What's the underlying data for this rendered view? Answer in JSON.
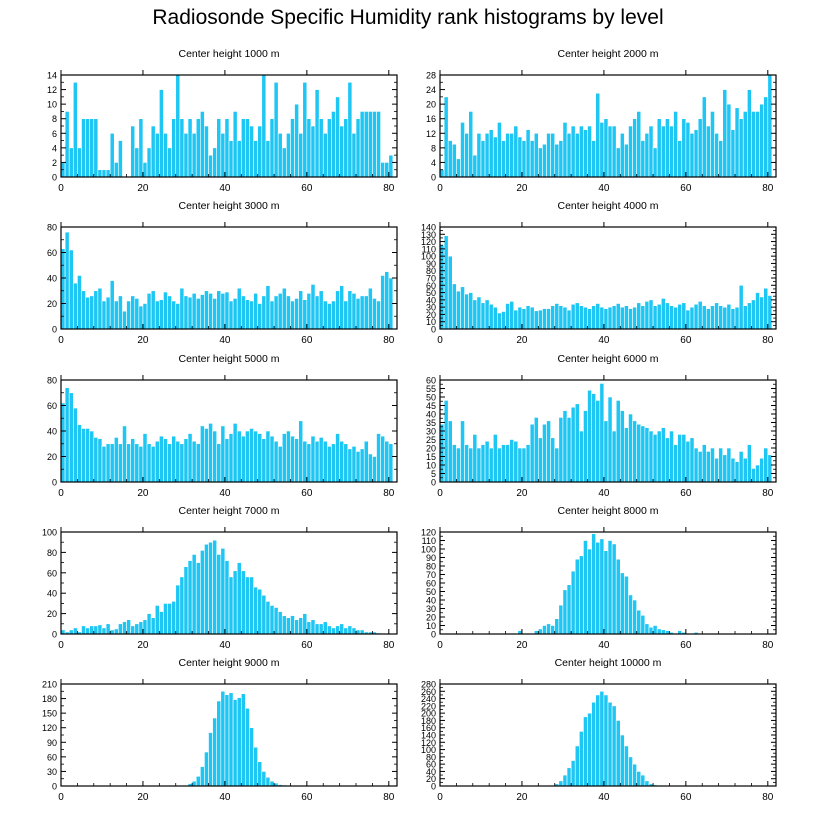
{
  "title": "Radiosonde Specific Humidity rank histograms by level",
  "colors": {
    "bar": "#1ec6f4",
    "bar_edge": "#ffffff",
    "axis": "#000000"
  },
  "chart_data": [
    {
      "type": "bar",
      "subtitle": "Center height 1000 m",
      "x_ticks": [
        0,
        20,
        40,
        60,
        80
      ],
      "y_ticks": [
        0,
        2,
        4,
        6,
        8,
        10,
        12,
        14
      ],
      "xlim": [
        0,
        82
      ],
      "ylim": [
        0,
        14
      ],
      "xlabel": "",
      "ylabel": "",
      "values": [
        2,
        9,
        4,
        13,
        4,
        8,
        8,
        8,
        8,
        1,
        1,
        1,
        6,
        2,
        5,
        0,
        0,
        7,
        4,
        8,
        2,
        4,
        7,
        6,
        12,
        6,
        4,
        8,
        14,
        8,
        6,
        8,
        6,
        8,
        9,
        7,
        3,
        4,
        8,
        6,
        8,
        5,
        9,
        5,
        8,
        8,
        7,
        5,
        7,
        14,
        5,
        8,
        13,
        6,
        4,
        6,
        8,
        10,
        6,
        13,
        8,
        7,
        12,
        8,
        6,
        8,
        9,
        11,
        7,
        8,
        13,
        6,
        8,
        9,
        9,
        9,
        9,
        9,
        2,
        2,
        3
      ]
    },
    {
      "type": "bar",
      "subtitle": "Center height 2000 m",
      "x_ticks": [
        0,
        20,
        40,
        60,
        80
      ],
      "y_ticks": [
        0,
        4,
        8,
        12,
        16,
        20,
        24,
        28
      ],
      "xlim": [
        0,
        82
      ],
      "ylim": [
        0,
        28
      ],
      "xlabel": "",
      "ylabel": "",
      "values": [
        2,
        22,
        10,
        9,
        5,
        15,
        12,
        18,
        6,
        12,
        10,
        12,
        13,
        11,
        15,
        10,
        12,
        12,
        14,
        11,
        10,
        13,
        10,
        12,
        8,
        9,
        12,
        12,
        9,
        10,
        15,
        12,
        14,
        12,
        14,
        13,
        14,
        10,
        23,
        15,
        16,
        14,
        14,
        8,
        12,
        9,
        14,
        16,
        18,
        10,
        12,
        14,
        8,
        16,
        14,
        16,
        14,
        18,
        10,
        16,
        15,
        12,
        13,
        16,
        22,
        14,
        18,
        12,
        10,
        24,
        20,
        13,
        19,
        16,
        18,
        24,
        18,
        18,
        20,
        22,
        28
      ]
    },
    {
      "type": "bar",
      "subtitle": "Center height 3000 m",
      "x_ticks": [
        0,
        20,
        40,
        60,
        80
      ],
      "y_ticks": [
        0,
        20,
        40,
        60,
        80
      ],
      "xlim": [
        0,
        82
      ],
      "ylim": [
        0,
        80
      ],
      "xlabel": "",
      "ylabel": "",
      "values": [
        63,
        76,
        62,
        36,
        42,
        30,
        25,
        26,
        30,
        32,
        22,
        25,
        38,
        22,
        26,
        14,
        22,
        26,
        24,
        18,
        20,
        28,
        30,
        22,
        23,
        29,
        26,
        22,
        20,
        32,
        26,
        25,
        28,
        24,
        27,
        30,
        28,
        24,
        30,
        28,
        29,
        22,
        24,
        32,
        26,
        23,
        22,
        28,
        20,
        26,
        34,
        22,
        26,
        28,
        32,
        26,
        22,
        24,
        30,
        23,
        28,
        35,
        26,
        30,
        22,
        20,
        22,
        30,
        34,
        22,
        30,
        28,
        24,
        26,
        26,
        32,
        24,
        22,
        42,
        45,
        40
      ]
    },
    {
      "type": "bar",
      "subtitle": "Center height 4000 m",
      "x_ticks": [
        0,
        20,
        40,
        60,
        80
      ],
      "y_ticks": [
        0,
        10,
        20,
        30,
        40,
        50,
        60,
        70,
        80,
        90,
        100,
        110,
        120,
        130,
        140
      ],
      "xlim": [
        0,
        82
      ],
      "ylim": [
        0,
        140
      ],
      "xlabel": "",
      "ylabel": "",
      "values": [
        115,
        128,
        100,
        62,
        52,
        58,
        48,
        50,
        40,
        44,
        36,
        40,
        34,
        30,
        22,
        24,
        35,
        38,
        26,
        30,
        28,
        32,
        30,
        25,
        26,
        28,
        28,
        32,
        35,
        32,
        30,
        26,
        34,
        36,
        32,
        30,
        28,
        32,
        35,
        30,
        28,
        30,
        32,
        35,
        30,
        32,
        28,
        30,
        36,
        32,
        38,
        40,
        32,
        34,
        42,
        36,
        32,
        30,
        34,
        36,
        26,
        30,
        34,
        38,
        32,
        28,
        32,
        36,
        32,
        30,
        34,
        28,
        30,
        60,
        32,
        36,
        40,
        50,
        44,
        56,
        46
      ]
    },
    {
      "type": "bar",
      "subtitle": "Center height 5000 m",
      "x_ticks": [
        0,
        20,
        40,
        60,
        80
      ],
      "y_ticks": [
        0,
        20,
        40,
        60,
        80
      ],
      "xlim": [
        0,
        82
      ],
      "ylim": [
        0,
        80
      ],
      "xlabel": "",
      "ylabel": "",
      "values": [
        62,
        74,
        70,
        58,
        45,
        42,
        42,
        40,
        35,
        34,
        28,
        30,
        30,
        35,
        30,
        44,
        30,
        34,
        30,
        28,
        38,
        30,
        28,
        32,
        36,
        34,
        30,
        36,
        32,
        30,
        34,
        38,
        32,
        30,
        44,
        42,
        46,
        40,
        30,
        44,
        34,
        38,
        46,
        40,
        36,
        40,
        42,
        40,
        38,
        34,
        40,
        36,
        32,
        28,
        38,
        40,
        36,
        34,
        48,
        32,
        30,
        36,
        32,
        35,
        32,
        28,
        30,
        38,
        32,
        30,
        26,
        28,
        24,
        26,
        32,
        22,
        20,
        38,
        36,
        32,
        30
      ]
    },
    {
      "type": "bar",
      "subtitle": "Center height 6000 m",
      "x_ticks": [
        0,
        20,
        40,
        60,
        80
      ],
      "y_ticks": [
        0,
        5,
        10,
        15,
        20,
        25,
        30,
        35,
        40,
        45,
        50,
        55,
        60
      ],
      "xlim": [
        0,
        82
      ],
      "ylim": [
        0,
        60
      ],
      "xlabel": "",
      "ylabel": "",
      "values": [
        34,
        48,
        36,
        22,
        20,
        36,
        22,
        20,
        28,
        20,
        22,
        24,
        20,
        28,
        20,
        22,
        22,
        25,
        24,
        20,
        20,
        22,
        34,
        38,
        26,
        34,
        36,
        26,
        20,
        38,
        42,
        38,
        44,
        46,
        30,
        42,
        54,
        52,
        48,
        58,
        36,
        50,
        30,
        48,
        42,
        32,
        40,
        36,
        34,
        33,
        32,
        30,
        28,
        30,
        32,
        26,
        30,
        22,
        28,
        28,
        24,
        26,
        20,
        18,
        22,
        18,
        20,
        14,
        20,
        16,
        20,
        14,
        12,
        18,
        14,
        22,
        8,
        10,
        14,
        20,
        16
      ]
    },
    {
      "type": "bar",
      "subtitle": "Center height 7000 m",
      "x_ticks": [
        0,
        20,
        40,
        60,
        80
      ],
      "y_ticks": [
        0,
        20,
        40,
        60,
        80,
        100
      ],
      "xlim": [
        0,
        82
      ],
      "ylim": [
        0,
        100
      ],
      "xlabel": "",
      "ylabel": "",
      "values": [
        4,
        2,
        4,
        6,
        2,
        8,
        6,
        8,
        8,
        9,
        6,
        10,
        4,
        5,
        10,
        12,
        14,
        8,
        10,
        12,
        14,
        20,
        16,
        28,
        22,
        30,
        30,
        32,
        48,
        56,
        66,
        72,
        78,
        70,
        82,
        88,
        90,
        92,
        78,
        84,
        72,
        56,
        62,
        70,
        62,
        56,
        56,
        46,
        44,
        38,
        32,
        28,
        26,
        22,
        18,
        16,
        18,
        14,
        16,
        20,
        12,
        14,
        10,
        10,
        12,
        8,
        6,
        8,
        10,
        6,
        8,
        6,
        4,
        4,
        2,
        2,
        2,
        1,
        0,
        0,
        0
      ]
    },
    {
      "type": "bar",
      "subtitle": "Center height 8000 m",
      "x_ticks": [
        0,
        20,
        40,
        60,
        80
      ],
      "y_ticks": [
        0,
        10,
        20,
        30,
        40,
        50,
        60,
        70,
        80,
        90,
        100,
        110,
        120
      ],
      "xlim": [
        0,
        82
      ],
      "ylim": [
        0,
        120
      ],
      "xlabel": "",
      "ylabel": "",
      "values": [
        0,
        0,
        0,
        0,
        0,
        0,
        0,
        0,
        0,
        0,
        0,
        0,
        0,
        0,
        0,
        0,
        0,
        0,
        0,
        4,
        0,
        0,
        0,
        4,
        6,
        10,
        12,
        10,
        18,
        34,
        52,
        58,
        74,
        88,
        92,
        110,
        100,
        118,
        108,
        112,
        98,
        110,
        106,
        88,
        72,
        68,
        46,
        40,
        28,
        22,
        12,
        8,
        10,
        6,
        5,
        4,
        2,
        1,
        4,
        2,
        1,
        0,
        2,
        0,
        0,
        0,
        0,
        0,
        0,
        0,
        0,
        0,
        0,
        0,
        0,
        0,
        0,
        0,
        0,
        0,
        0
      ]
    },
    {
      "type": "bar",
      "subtitle": "Center height 9000 m",
      "x_ticks": [
        0,
        20,
        40,
        60,
        80
      ],
      "y_ticks": [
        0,
        30,
        60,
        90,
        120,
        150,
        180,
        210
      ],
      "xlim": [
        0,
        82
      ],
      "ylim": [
        0,
        210
      ],
      "xlabel": "",
      "ylabel": "",
      "values": [
        0,
        0,
        0,
        0,
        0,
        0,
        0,
        0,
        0,
        0,
        0,
        0,
        0,
        0,
        0,
        0,
        0,
        0,
        0,
        0,
        0,
        0,
        0,
        0,
        0,
        0,
        0,
        0,
        0,
        0,
        0,
        5,
        10,
        20,
        40,
        70,
        110,
        140,
        175,
        195,
        188,
        192,
        178,
        182,
        190,
        160,
        120,
        80,
        50,
        30,
        18,
        10,
        6,
        3,
        2,
        1,
        0,
        0,
        0,
        0,
        0,
        0,
        0,
        0,
        0,
        0,
        0,
        0,
        0,
        0,
        0,
        0,
        0,
        0,
        0,
        0,
        0,
        0,
        0,
        0,
        0
      ]
    },
    {
      "type": "bar",
      "subtitle": "Center height 10000 m",
      "x_ticks": [
        0,
        20,
        40,
        60,
        80
      ],
      "y_ticks": [
        0,
        20,
        40,
        60,
        80,
        100,
        120,
        140,
        160,
        180,
        200,
        220,
        240,
        260,
        280
      ],
      "xlim": [
        0,
        82
      ],
      "ylim": [
        0,
        280
      ],
      "xlabel": "",
      "ylabel": "",
      "values": [
        0,
        0,
        0,
        0,
        0,
        0,
        0,
        0,
        0,
        0,
        0,
        0,
        0,
        0,
        0,
        0,
        0,
        0,
        0,
        0,
        0,
        0,
        0,
        0,
        0,
        0,
        0,
        2,
        6,
        14,
        30,
        50,
        70,
        110,
        150,
        190,
        200,
        230,
        250,
        260,
        250,
        230,
        220,
        180,
        140,
        110,
        80,
        60,
        40,
        30,
        14,
        6,
        3,
        1,
        0,
        0,
        0,
        0,
        0,
        0,
        0,
        0,
        0,
        0,
        0,
        0,
        0,
        0,
        0,
        0,
        0,
        0,
        0,
        0,
        0,
        0,
        0,
        0,
        0,
        0,
        0
      ]
    }
  ]
}
